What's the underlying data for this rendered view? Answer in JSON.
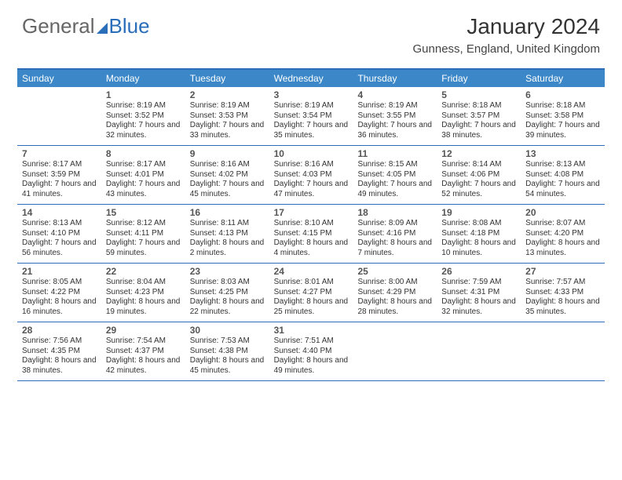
{
  "brand": {
    "text1": "General",
    "text2": "Blue"
  },
  "title": "January 2024",
  "location": "Gunness, England, United Kingdom",
  "colors": {
    "header_bg": "#3b87c8",
    "border": "#2a6db8",
    "logo_blue": "#2a6db8",
    "logo_gray": "#666666",
    "text": "#333333"
  },
  "day_names": [
    "Sunday",
    "Monday",
    "Tuesday",
    "Wednesday",
    "Thursday",
    "Friday",
    "Saturday"
  ],
  "first_day_index": 1,
  "days": [
    {
      "n": 1,
      "sr": "8:19 AM",
      "ss": "3:52 PM",
      "dl": "7 hours and 32 minutes."
    },
    {
      "n": 2,
      "sr": "8:19 AM",
      "ss": "3:53 PM",
      "dl": "7 hours and 33 minutes."
    },
    {
      "n": 3,
      "sr": "8:19 AM",
      "ss": "3:54 PM",
      "dl": "7 hours and 35 minutes."
    },
    {
      "n": 4,
      "sr": "8:19 AM",
      "ss": "3:55 PM",
      "dl": "7 hours and 36 minutes."
    },
    {
      "n": 5,
      "sr": "8:18 AM",
      "ss": "3:57 PM",
      "dl": "7 hours and 38 minutes."
    },
    {
      "n": 6,
      "sr": "8:18 AM",
      "ss": "3:58 PM",
      "dl": "7 hours and 39 minutes."
    },
    {
      "n": 7,
      "sr": "8:17 AM",
      "ss": "3:59 PM",
      "dl": "7 hours and 41 minutes."
    },
    {
      "n": 8,
      "sr": "8:17 AM",
      "ss": "4:01 PM",
      "dl": "7 hours and 43 minutes."
    },
    {
      "n": 9,
      "sr": "8:16 AM",
      "ss": "4:02 PM",
      "dl": "7 hours and 45 minutes."
    },
    {
      "n": 10,
      "sr": "8:16 AM",
      "ss": "4:03 PM",
      "dl": "7 hours and 47 minutes."
    },
    {
      "n": 11,
      "sr": "8:15 AM",
      "ss": "4:05 PM",
      "dl": "7 hours and 49 minutes."
    },
    {
      "n": 12,
      "sr": "8:14 AM",
      "ss": "4:06 PM",
      "dl": "7 hours and 52 minutes."
    },
    {
      "n": 13,
      "sr": "8:13 AM",
      "ss": "4:08 PM",
      "dl": "7 hours and 54 minutes."
    },
    {
      "n": 14,
      "sr": "8:13 AM",
      "ss": "4:10 PM",
      "dl": "7 hours and 56 minutes."
    },
    {
      "n": 15,
      "sr": "8:12 AM",
      "ss": "4:11 PM",
      "dl": "7 hours and 59 minutes."
    },
    {
      "n": 16,
      "sr": "8:11 AM",
      "ss": "4:13 PM",
      "dl": "8 hours and 2 minutes."
    },
    {
      "n": 17,
      "sr": "8:10 AM",
      "ss": "4:15 PM",
      "dl": "8 hours and 4 minutes."
    },
    {
      "n": 18,
      "sr": "8:09 AM",
      "ss": "4:16 PM",
      "dl": "8 hours and 7 minutes."
    },
    {
      "n": 19,
      "sr": "8:08 AM",
      "ss": "4:18 PM",
      "dl": "8 hours and 10 minutes."
    },
    {
      "n": 20,
      "sr": "8:07 AM",
      "ss": "4:20 PM",
      "dl": "8 hours and 13 minutes."
    },
    {
      "n": 21,
      "sr": "8:05 AM",
      "ss": "4:22 PM",
      "dl": "8 hours and 16 minutes."
    },
    {
      "n": 22,
      "sr": "8:04 AM",
      "ss": "4:23 PM",
      "dl": "8 hours and 19 minutes."
    },
    {
      "n": 23,
      "sr": "8:03 AM",
      "ss": "4:25 PM",
      "dl": "8 hours and 22 minutes."
    },
    {
      "n": 24,
      "sr": "8:01 AM",
      "ss": "4:27 PM",
      "dl": "8 hours and 25 minutes."
    },
    {
      "n": 25,
      "sr": "8:00 AM",
      "ss": "4:29 PM",
      "dl": "8 hours and 28 minutes."
    },
    {
      "n": 26,
      "sr": "7:59 AM",
      "ss": "4:31 PM",
      "dl": "8 hours and 32 minutes."
    },
    {
      "n": 27,
      "sr": "7:57 AM",
      "ss": "4:33 PM",
      "dl": "8 hours and 35 minutes."
    },
    {
      "n": 28,
      "sr": "7:56 AM",
      "ss": "4:35 PM",
      "dl": "8 hours and 38 minutes."
    },
    {
      "n": 29,
      "sr": "7:54 AM",
      "ss": "4:37 PM",
      "dl": "8 hours and 42 minutes."
    },
    {
      "n": 30,
      "sr": "7:53 AM",
      "ss": "4:38 PM",
      "dl": "8 hours and 45 minutes."
    },
    {
      "n": 31,
      "sr": "7:51 AM",
      "ss": "4:40 PM",
      "dl": "8 hours and 49 minutes."
    }
  ],
  "labels": {
    "sunrise": "Sunrise:",
    "sunset": "Sunset:",
    "daylight": "Daylight:"
  }
}
